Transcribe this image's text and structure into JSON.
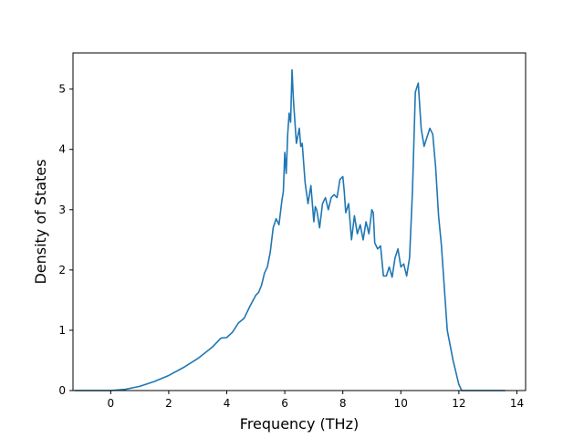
{
  "chart_data": {
    "type": "line",
    "title": "",
    "xlabel": "Frequency (THz)",
    "ylabel": "Density of States",
    "xlim": [
      -1.3,
      14.3
    ],
    "ylim": [
      0,
      5.6
    ],
    "grid": false,
    "x_ticks": [
      0,
      2,
      4,
      6,
      8,
      10,
      12,
      14
    ],
    "y_ticks": [
      0,
      1,
      2,
      3,
      4,
      5
    ],
    "x_tick_labels": [
      "0",
      "2",
      "4",
      "6",
      "8",
      "10",
      "12",
      "14"
    ],
    "y_tick_labels": [
      "0",
      "1",
      "2",
      "3",
      "4",
      "5"
    ],
    "series": [
      {
        "color": "#1f77b4",
        "x": [
          -1.25,
          -1.0,
          -0.5,
          0.0,
          0.5,
          1.0,
          1.5,
          2.0,
          2.5,
          3.0,
          3.5,
          3.8,
          4.0,
          4.2,
          4.4,
          4.6,
          4.8,
          5.0,
          5.1,
          5.2,
          5.3,
          5.4,
          5.5,
          5.6,
          5.7,
          5.8,
          5.85,
          5.9,
          5.95,
          6.0,
          6.05,
          6.1,
          6.15,
          6.2,
          6.25,
          6.3,
          6.4,
          6.5,
          6.55,
          6.6,
          6.7,
          6.8,
          6.9,
          7.0,
          7.05,
          7.1,
          7.2,
          7.3,
          7.4,
          7.5,
          7.6,
          7.7,
          7.8,
          7.9,
          8.0,
          8.05,
          8.1,
          8.2,
          8.3,
          8.4,
          8.5,
          8.6,
          8.7,
          8.8,
          8.9,
          9.0,
          9.05,
          9.1,
          9.2,
          9.3,
          9.4,
          9.5,
          9.6,
          9.7,
          9.8,
          9.9,
          10.0,
          10.1,
          10.2,
          10.3,
          10.4,
          10.5,
          10.6,
          10.7,
          10.8,
          10.9,
          11.0,
          11.1,
          11.2,
          11.3,
          11.4,
          11.5,
          11.6,
          11.7,
          11.8,
          11.9,
          12.0,
          12.1,
          12.2,
          12.3,
          12.4,
          12.5,
          13.0,
          13.6
        ],
        "y": [
          0,
          0,
          0,
          0,
          0.02,
          0.07,
          0.15,
          0.25,
          0.38,
          0.53,
          0.72,
          0.87,
          0.88,
          0.97,
          1.12,
          1.2,
          1.4,
          1.58,
          1.63,
          1.75,
          1.95,
          2.05,
          2.3,
          2.7,
          2.85,
          2.75,
          2.95,
          3.15,
          3.3,
          3.95,
          3.6,
          4.25,
          4.6,
          4.45,
          5.32,
          4.8,
          4.1,
          4.35,
          4.05,
          4.1,
          3.45,
          3.1,
          3.4,
          2.8,
          3.05,
          3.0,
          2.7,
          3.1,
          3.2,
          3.0,
          3.2,
          3.25,
          3.2,
          3.5,
          3.55,
          3.3,
          2.95,
          3.1,
          2.5,
          2.9,
          2.6,
          2.75,
          2.5,
          2.8,
          2.6,
          3.0,
          2.95,
          2.45,
          2.35,
          2.4,
          1.9,
          1.9,
          2.05,
          1.88,
          2.2,
          2.35,
          2.05,
          2.1,
          1.9,
          2.2,
          3.3,
          4.95,
          5.1,
          4.35,
          4.05,
          4.2,
          4.35,
          4.25,
          3.7,
          2.9,
          2.4,
          1.7,
          1.0,
          0.75,
          0.5,
          0.3,
          0.1,
          0,
          0,
          0,
          0,
          0,
          0,
          0
        ]
      }
    ]
  }
}
